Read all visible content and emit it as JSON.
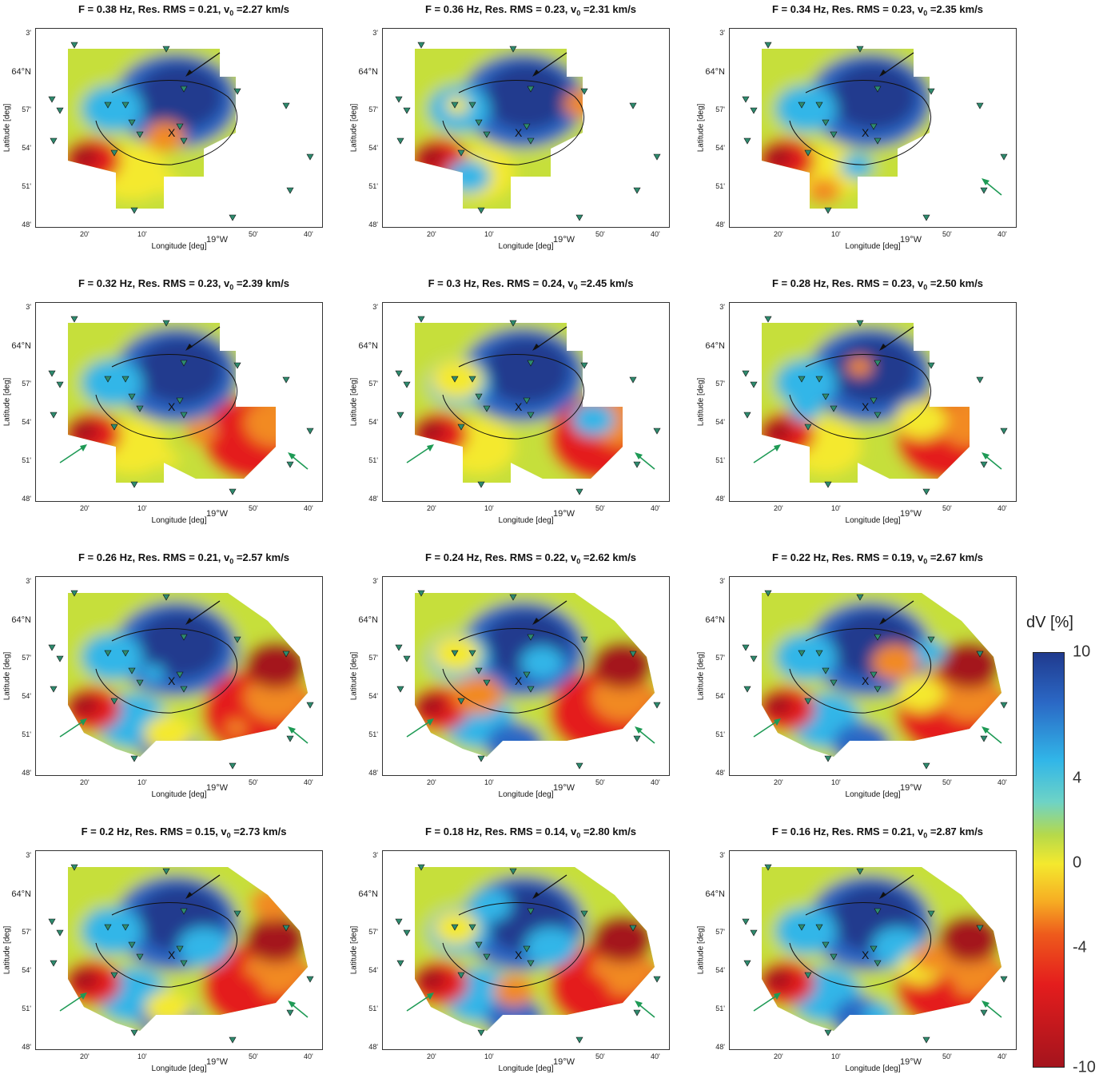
{
  "figure": {
    "lat_axis_label": "Latitude [deg]",
    "lon_axis_label": "Longitude [deg]",
    "lat_ticks": [
      "3'",
      "64°N",
      "57'",
      "54'",
      "51'",
      "48'"
    ],
    "lon_ticks": [
      "20'",
      "10'",
      "19°W",
      "50'",
      "40'"
    ]
  },
  "panels": [
    {
      "title_pre": "F = 0.38 Hz, Res. RMS = 0.21, v",
      "title_sub": "0",
      "title_post": " =2.27 km/s"
    },
    {
      "title_pre": "F = 0.36 Hz, Res. RMS = 0.23, v",
      "title_sub": "0",
      "title_post": " =2.31 km/s"
    },
    {
      "title_pre": "F = 0.34 Hz, Res. RMS = 0.23, v",
      "title_sub": "0",
      "title_post": " =2.35 km/s"
    },
    {
      "title_pre": "F = 0.32 Hz, Res. RMS = 0.23, v",
      "title_sub": "0",
      "title_post": " =2.39 km/s"
    },
    {
      "title_pre": "F = 0.3 Hz, Res. RMS = 0.24, v",
      "title_sub": "0",
      "title_post": " =2.45 km/s"
    },
    {
      "title_pre": "F = 0.28 Hz, Res. RMS = 0.23, v",
      "title_sub": "0",
      "title_post": " =2.50 km/s"
    },
    {
      "title_pre": "F = 0.26 Hz, Res. RMS = 0.21, v",
      "title_sub": "0",
      "title_post": " =2.57 km/s"
    },
    {
      "title_pre": "F = 0.24 Hz, Res. RMS = 0.22, v",
      "title_sub": "0",
      "title_post": " =2.62 km/s"
    },
    {
      "title_pre": "F = 0.22 Hz, Res. RMS = 0.19, v",
      "title_sub": "0",
      "title_post": " =2.67 km/s"
    },
    {
      "title_pre": "F = 0.2 Hz, Res. RMS = 0.15, v",
      "title_sub": "0",
      "title_post": " =2.73 km/s"
    },
    {
      "title_pre": "F = 0.18 Hz, Res. RMS = 0.14, v",
      "title_sub": "0",
      "title_post": " =2.80 km/s"
    },
    {
      "title_pre": "F = 0.16 Hz, Res. RMS = 0.21, v",
      "title_sub": "0",
      "title_post": " =2.87 km/s"
    }
  ],
  "map": {
    "marker_label": "X",
    "colors": {
      "deep_blue": "#203a8e",
      "blue": "#2b68c5",
      "cyan": "#31b6e8",
      "green": "#8ed24a",
      "yellow": "#f4e92e",
      "orange": "#f28a22",
      "red": "#e41d1d",
      "dark_red": "#a4141d",
      "station": "#2e8b6e",
      "green_arrow": "#1e9a55"
    }
  },
  "colorbar": {
    "title": "dV [%]",
    "ticks": [
      "10",
      "4",
      "0",
      "-4",
      "-10"
    ],
    "values": [
      10,
      4,
      0,
      -4,
      -10
    ]
  }
}
